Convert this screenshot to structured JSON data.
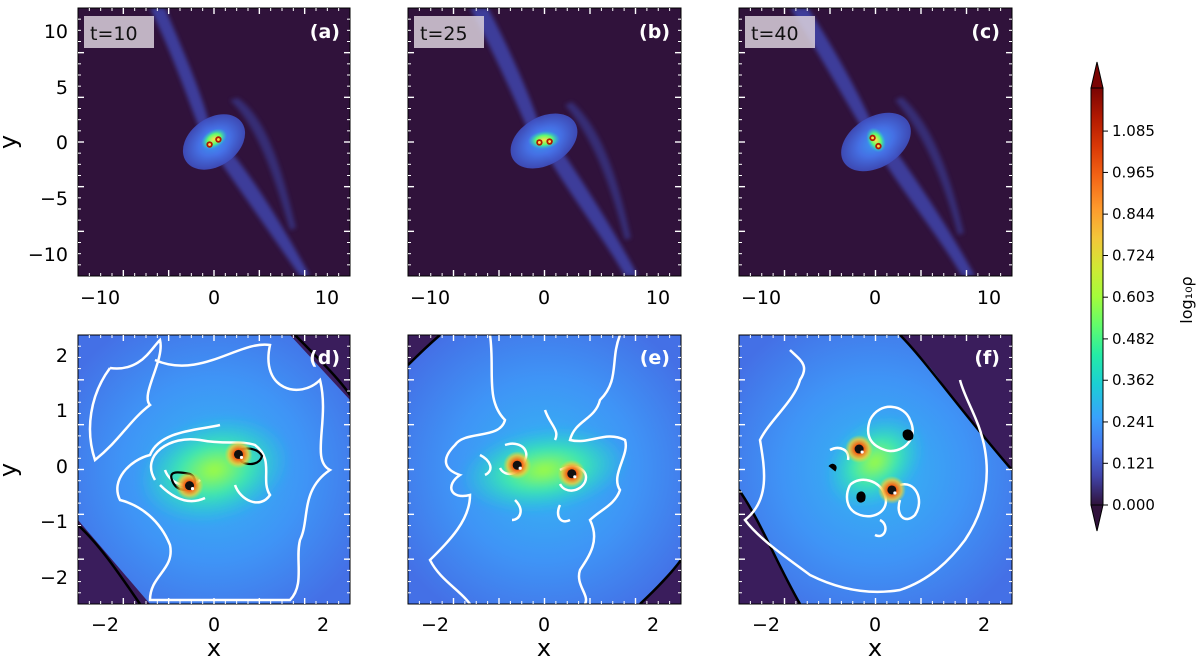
{
  "chart_data": {
    "type": "heatmap",
    "colormap": "turbo",
    "colorbar": {
      "label": "log₁₀ρ",
      "ticks": [
        "0.000",
        "0.121",
        "0.241",
        "0.362",
        "0.482",
        "0.603",
        "0.724",
        "0.844",
        "0.965",
        "1.085"
      ],
      "range": [
        0.0,
        1.21
      ],
      "extend": "both"
    },
    "panels": [
      {
        "id": "a",
        "label": "(a)",
        "time_label": "t=10",
        "xlim": [
          -12,
          12
        ],
        "ylim": [
          -12,
          12
        ],
        "xticks": [
          "−10",
          "0",
          "10"
        ],
        "yticks": [
          "10",
          "5",
          "0",
          "−5",
          "−10"
        ],
        "ylabel": "y",
        "binary_angle_deg": 30,
        "binary_sep": 0.9
      },
      {
        "id": "b",
        "label": "(b)",
        "time_label": "t=25",
        "xlim": [
          -12,
          12
        ],
        "ylim": [
          -12,
          12
        ],
        "xticks": [
          "−10",
          "0",
          "10"
        ],
        "binary_angle_deg": 5,
        "binary_sep": 0.9
      },
      {
        "id": "c",
        "label": "(c)",
        "time_label": "t=40",
        "xlim": [
          -12,
          12
        ],
        "ylim": [
          -12,
          12
        ],
        "xticks": [
          "−10",
          "0",
          "10"
        ],
        "binary_angle_deg": -55,
        "binary_sep": 0.9
      },
      {
        "id": "d",
        "label": "(d)",
        "xlim": [
          -2.5,
          2.5
        ],
        "ylim": [
          -2.5,
          2.5
        ],
        "xticks": [
          "−2",
          "0",
          "2"
        ],
        "yticks": [
          "2",
          "1",
          "0",
          "−1",
          "−2"
        ],
        "ylabel": "y",
        "xlabel": "x",
        "binary": [
          [
            -0.45,
            -0.3
          ],
          [
            0.45,
            0.28
          ]
        ]
      },
      {
        "id": "e",
        "label": "(e)",
        "xlim": [
          -2.5,
          2.5
        ],
        "ylim": [
          -2.5,
          2.5
        ],
        "xticks": [
          "−2",
          "0",
          "2"
        ],
        "xlabel": "x",
        "binary": [
          [
            -0.5,
            0.08
          ],
          [
            0.5,
            -0.08
          ]
        ]
      },
      {
        "id": "f",
        "label": "(f)",
        "xlim": [
          -2.5,
          2.5
        ],
        "ylim": [
          -2.5,
          2.5
        ],
        "xticks": [
          "−2",
          "0",
          "2"
        ],
        "xlabel": "x",
        "binary": [
          [
            -0.3,
            0.38
          ],
          [
            0.3,
            -0.38
          ]
        ]
      }
    ]
  }
}
